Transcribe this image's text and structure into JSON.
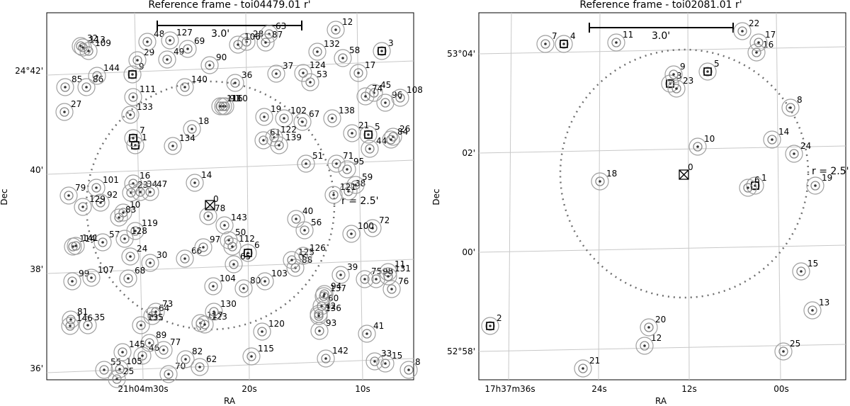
{
  "panels": [
    {
      "title": "Reference frame - toi04479.01 r'",
      "scalebar_label": "3.0'",
      "radius_label": "r = 2.5'",
      "xlabel": "RA",
      "ylabel": "Dec",
      "ra_ticks": [
        "21h04m30s",
        "20s",
        "10s"
      ],
      "dec_ticks": [
        "24°42'",
        "40'",
        "38'",
        "36'"
      ],
      "target_label": "0",
      "stars": [
        {
          "id": "1"
        },
        {
          "id": "3"
        },
        {
          "id": "5"
        },
        {
          "id": "6"
        },
        {
          "id": "7"
        },
        {
          "id": "8"
        },
        {
          "id": "9"
        },
        {
          "id": "10"
        },
        {
          "id": "11"
        },
        {
          "id": "12"
        },
        {
          "id": "14"
        },
        {
          "id": "15"
        },
        {
          "id": "16"
        },
        {
          "id": "17"
        },
        {
          "id": "18"
        },
        {
          "id": "19"
        },
        {
          "id": "21"
        },
        {
          "id": "23"
        },
        {
          "id": "24"
        },
        {
          "id": "25"
        },
        {
          "id": "26"
        },
        {
          "id": "27"
        },
        {
          "id": "28"
        },
        {
          "id": "29"
        },
        {
          "id": "30"
        },
        {
          "id": "32"
        },
        {
          "id": "33"
        },
        {
          "id": "34"
        },
        {
          "id": "35"
        },
        {
          "id": "36"
        },
        {
          "id": "37"
        },
        {
          "id": "38"
        },
        {
          "id": "39"
        },
        {
          "id": "40"
        },
        {
          "id": "41"
        },
        {
          "id": "42"
        },
        {
          "id": "44"
        },
        {
          "id": "45"
        },
        {
          "id": "46"
        },
        {
          "id": "47"
        },
        {
          "id": "48"
        },
        {
          "id": "49"
        },
        {
          "id": "50"
        },
        {
          "id": "51"
        },
        {
          "id": "53"
        },
        {
          "id": "55"
        },
        {
          "id": "56"
        },
        {
          "id": "57"
        },
        {
          "id": "58"
        },
        {
          "id": "59"
        },
        {
          "id": "60"
        },
        {
          "id": "61"
        },
        {
          "id": "62"
        },
        {
          "id": "63"
        },
        {
          "id": "64"
        },
        {
          "id": "65"
        },
        {
          "id": "66"
        },
        {
          "id": "67"
        },
        {
          "id": "68"
        },
        {
          "id": "69"
        },
        {
          "id": "70"
        },
        {
          "id": "71"
        },
        {
          "id": "72"
        },
        {
          "id": "73"
        },
        {
          "id": "74"
        },
        {
          "id": "75"
        },
        {
          "id": "76"
        },
        {
          "id": "77"
        },
        {
          "id": "78"
        },
        {
          "id": "79"
        },
        {
          "id": "80"
        },
        {
          "id": "81"
        },
        {
          "id": "82"
        },
        {
          "id": "83"
        },
        {
          "id": "84"
        },
        {
          "id": "85"
        },
        {
          "id": "86"
        },
        {
          "id": "87"
        },
        {
          "id": "88"
        },
        {
          "id": "89"
        },
        {
          "id": "90"
        },
        {
          "id": "91"
        },
        {
          "id": "92"
        },
        {
          "id": "93"
        },
        {
          "id": "94"
        },
        {
          "id": "95"
        },
        {
          "id": "96"
        },
        {
          "id": "97"
        },
        {
          "id": "98"
        },
        {
          "id": "99"
        },
        {
          "id": "100"
        },
        {
          "id": "101"
        },
        {
          "id": "102"
        },
        {
          "id": "103"
        },
        {
          "id": "104"
        },
        {
          "id": "105"
        },
        {
          "id": "106"
        },
        {
          "id": "107"
        },
        {
          "id": "108"
        },
        {
          "id": "109"
        },
        {
          "id": "110"
        },
        {
          "id": "111"
        },
        {
          "id": "112"
        },
        {
          "id": "113"
        },
        {
          "id": "114"
        },
        {
          "id": "115"
        },
        {
          "id": "116"
        },
        {
          "id": "117"
        },
        {
          "id": "119"
        },
        {
          "id": "120"
        },
        {
          "id": "121"
        },
        {
          "id": "122"
        },
        {
          "id": "123"
        },
        {
          "id": "124"
        },
        {
          "id": "125"
        },
        {
          "id": "126"
        },
        {
          "id": "127"
        },
        {
          "id": "128"
        },
        {
          "id": "129"
        },
        {
          "id": "130"
        },
        {
          "id": "131"
        },
        {
          "id": "132"
        },
        {
          "id": "133"
        },
        {
          "id": "134"
        },
        {
          "id": "135"
        },
        {
          "id": "136"
        },
        {
          "id": "137"
        },
        {
          "id": "138"
        },
        {
          "id": "139"
        },
        {
          "id": "140"
        },
        {
          "id": "141"
        },
        {
          "id": "142"
        },
        {
          "id": "143"
        },
        {
          "id": "144"
        },
        {
          "id": "145"
        },
        {
          "id": "146"
        }
      ],
      "boxed": [
        "1",
        "3",
        "5",
        "6",
        "7",
        "9"
      ]
    },
    {
      "title": "Reference frame - toi02081.01 r'",
      "scalebar_label": "3.0'",
      "radius_label": "r = 2.5'",
      "xlabel": "RA",
      "ylabel": "Dec",
      "ra_ticks": [
        "17h37m36s",
        "24s",
        "12s",
        "00s"
      ],
      "dec_ticks": [
        "53°04'",
        "02'",
        "00'",
        "52°58'"
      ],
      "target_label": "0",
      "stars": [
        {
          "id": "1"
        },
        {
          "id": "2"
        },
        {
          "id": "3"
        },
        {
          "id": "4"
        },
        {
          "id": "5"
        },
        {
          "id": "6"
        },
        {
          "id": "7"
        },
        {
          "id": "8"
        },
        {
          "id": "9"
        },
        {
          "id": "10"
        },
        {
          "id": "11"
        },
        {
          "id": "12"
        },
        {
          "id": "13"
        },
        {
          "id": "14"
        },
        {
          "id": "15"
        },
        {
          "id": "16"
        },
        {
          "id": "17"
        },
        {
          "id": "18"
        },
        {
          "id": "19"
        },
        {
          "id": "20"
        },
        {
          "id": "21"
        },
        {
          "id": "22"
        },
        {
          "id": "23"
        },
        {
          "id": "24"
        },
        {
          "id": "25"
        }
      ],
      "boxed": [
        "1",
        "2",
        "3",
        "4",
        "5"
      ]
    }
  ],
  "colors": {
    "ring": "#a0a0a0",
    "grid": "#c8c8c8",
    "aperture": "#707070"
  }
}
